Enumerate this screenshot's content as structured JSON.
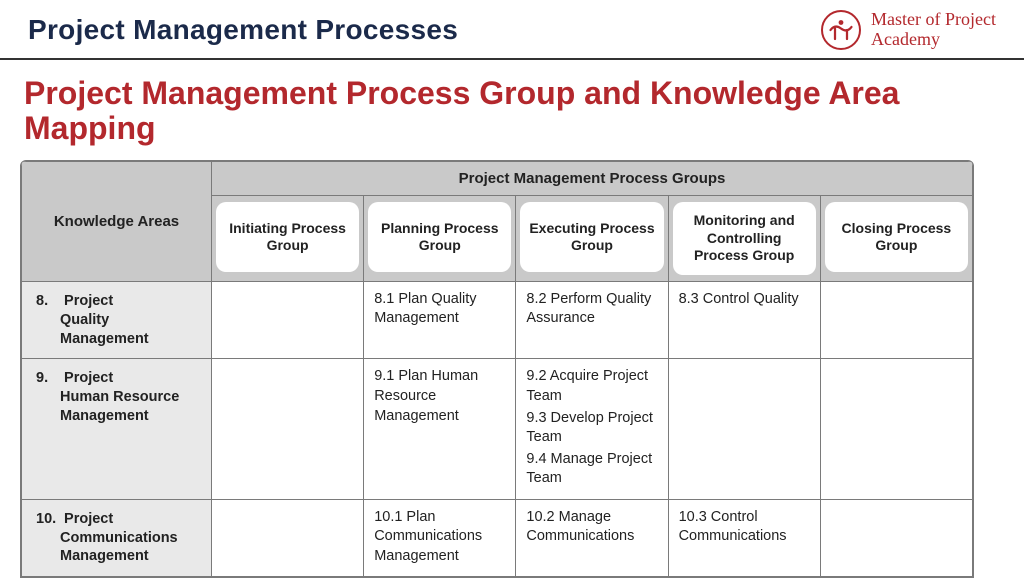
{
  "header": {
    "title": "Project Management Processes",
    "brand_line1": "Master of Project",
    "brand_line2": "Academy"
  },
  "subtitle": "Project Management Process Group and Knowledge Area Mapping",
  "table": {
    "ka_header": "Knowledge Areas",
    "pg_span_header": "Project Management Process Groups",
    "process_groups": [
      "Initiating Process Group",
      "Planning Process Group",
      "Executing Process Group",
      "Monitoring and Controlling Process Group",
      "Closing Process Group"
    ],
    "rows": [
      {
        "ka_num": "8.",
        "ka_label": "Project\nQuality\nManagement",
        "cells": [
          "",
          "8.1 Plan Quality Management",
          "8.2 Perform Quality Assurance",
          "8.3 Control Quality",
          ""
        ]
      },
      {
        "ka_num": "9.",
        "ka_label": "Project\nHuman Resource\nManagement",
        "cells": [
          "",
          "9.1 Plan Human Resource Management",
          "9.2 Acquire Project Team\n9.3 Develop Project Team\n9.4 Manage Project Team",
          "",
          ""
        ]
      },
      {
        "ka_num": "10.",
        "ka_label": "Project\nCommunications\nManagement",
        "cells": [
          "",
          "10.1 Plan Communications Management",
          "10.2 Manage Communications",
          "10.3 Control Communications",
          ""
        ]
      }
    ]
  },
  "colors": {
    "header_text": "#1b2a4a",
    "accent": "#b3282d",
    "grid": "#7a7a7a",
    "header_bg": "#c9c9c9",
    "ka_bg": "#e9e9e9",
    "body_bg": "#ffffff"
  }
}
